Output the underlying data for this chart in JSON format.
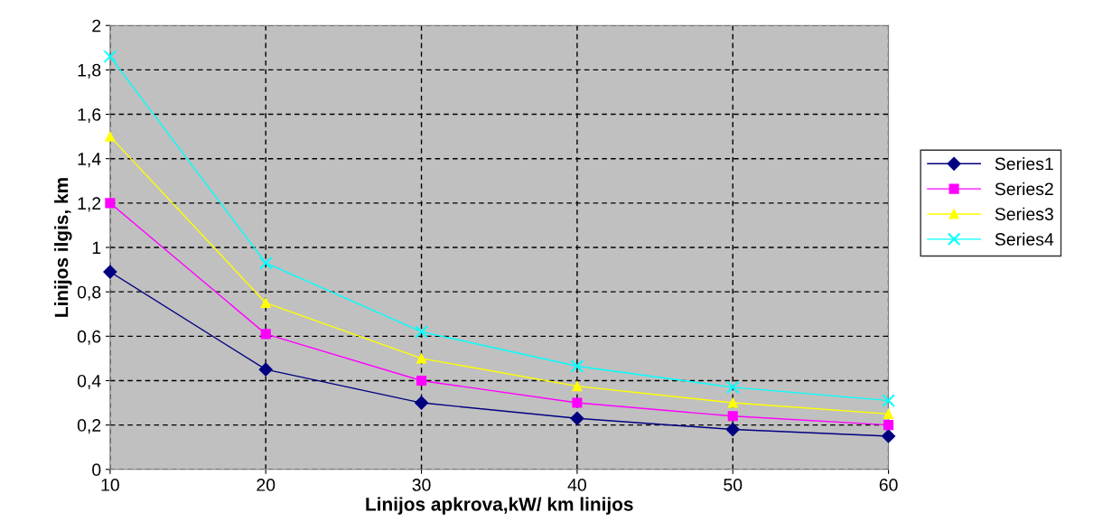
{
  "chart_data": {
    "type": "line",
    "xlabel": "Linijos apkrova,kW/ km linijos",
    "ylabel": "Linijos ilgis, km",
    "x": [
      10,
      20,
      30,
      40,
      50,
      60
    ],
    "series": [
      {
        "name": "Series1",
        "color": "#000080",
        "marker": "diamond",
        "values": [
          0.89,
          0.45,
          0.3,
          0.23,
          0.18,
          0.15
        ]
      },
      {
        "name": "Series2",
        "color": "#ff00ff",
        "marker": "square",
        "values": [
          1.2,
          0.61,
          0.4,
          0.3,
          0.24,
          0.2
        ]
      },
      {
        "name": "Series3",
        "color": "#ffff00",
        "marker": "triangle",
        "values": [
          1.5,
          0.75,
          0.5,
          0.375,
          0.3,
          0.25
        ]
      },
      {
        "name": "Series4",
        "color": "#00ffff",
        "marker": "cross",
        "values": [
          1.86,
          0.93,
          0.62,
          0.465,
          0.37,
          0.31
        ]
      }
    ],
    "xlim": [
      10,
      60
    ],
    "xticks": [
      10,
      20,
      30,
      40,
      50,
      60
    ],
    "ylim": [
      0,
      2
    ],
    "yticks": [
      0,
      {
        "value": 0.2,
        "label": "0,2"
      },
      {
        "value": 0.4,
        "label": "0,4"
      },
      {
        "value": 0.6,
        "label": "0,6"
      },
      {
        "value": 0.8,
        "label": "0,8"
      },
      1,
      {
        "value": 1.2,
        "label": "1,2"
      },
      {
        "value": 1.4,
        "label": "1,4"
      },
      {
        "value": 1.6,
        "label": "1,6"
      },
      {
        "value": 1.8,
        "label": "1,8"
      },
      2
    ],
    "grid": true,
    "legend": "right",
    "line_style": "solid"
  }
}
